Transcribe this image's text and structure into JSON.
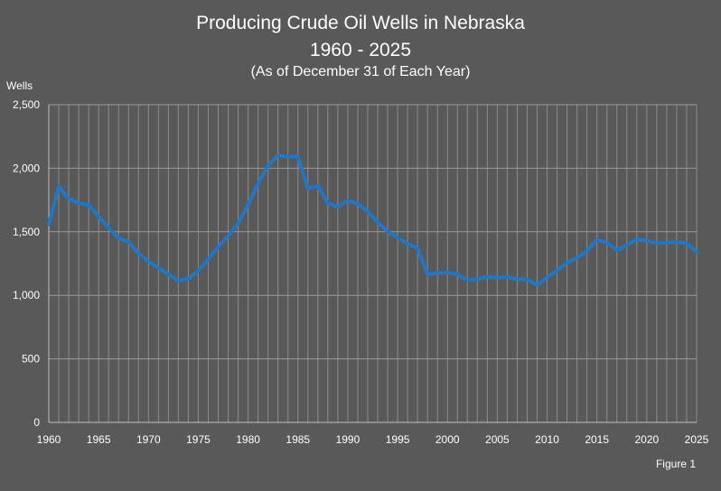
{
  "chart_data": {
    "type": "line",
    "title": "Producing Crude Oil Wells in Nebraska",
    "subtitle": "1960 - 2025",
    "note": "(As of December 31 of Each Year)",
    "ylabel": "Wells",
    "xlabel": "",
    "figure_label": "Figure 1",
    "xlim": [
      1960,
      2025
    ],
    "ylim": [
      0,
      2500
    ],
    "x_ticks": [
      1960,
      1965,
      1970,
      1975,
      1980,
      1985,
      1990,
      1995,
      2000,
      2005,
      2010,
      2015,
      2020,
      2025
    ],
    "y_ticks": [
      0,
      500,
      1000,
      1500,
      2000,
      2500
    ],
    "y_tick_labels": [
      "0",
      "500",
      "1,000",
      "1,500",
      "2,000",
      "2,500"
    ],
    "grid": true,
    "legend": "none",
    "line_color": "#1f77c8",
    "background_color": "#595959",
    "series": [
      {
        "x": [
          1960,
          1961,
          1962,
          1963,
          1964,
          1965,
          1966,
          1967,
          1968,
          1969,
          1970,
          1971,
          1972,
          1973,
          1974,
          1975,
          1976,
          1977,
          1978,
          1979,
          1980,
          1981,
          1982,
          1983,
          1984,
          1985,
          1986,
          1987,
          1988,
          1989,
          1990,
          1991,
          1992,
          1993,
          1994,
          1995,
          1996,
          1997,
          1998,
          1999,
          2000,
          2001,
          2002,
          2003,
          2004,
          2005,
          2006,
          2007,
          2008,
          2009,
          2010,
          2011,
          2012,
          2013,
          2014,
          2015,
          2016,
          2017,
          2018,
          2019,
          2020,
          2021,
          2022,
          2023,
          2024,
          2025
        ],
        "values": [
          1560,
          1855,
          1760,
          1725,
          1710,
          1620,
          1530,
          1450,
          1420,
          1330,
          1265,
          1215,
          1165,
          1115,
          1130,
          1190,
          1285,
          1380,
          1470,
          1565,
          1710,
          1880,
          2020,
          2100,
          2090,
          2090,
          1840,
          1860,
          1725,
          1695,
          1745,
          1720,
          1660,
          1575,
          1500,
          1455,
          1405,
          1370,
          1165,
          1175,
          1180,
          1165,
          1120,
          1125,
          1145,
          1140,
          1145,
          1125,
          1125,
          1080,
          1140,
          1195,
          1255,
          1295,
          1350,
          1435,
          1415,
          1355,
          1395,
          1440,
          1430,
          1410,
          1415,
          1420,
          1410,
          1340
        ]
      }
    ]
  }
}
